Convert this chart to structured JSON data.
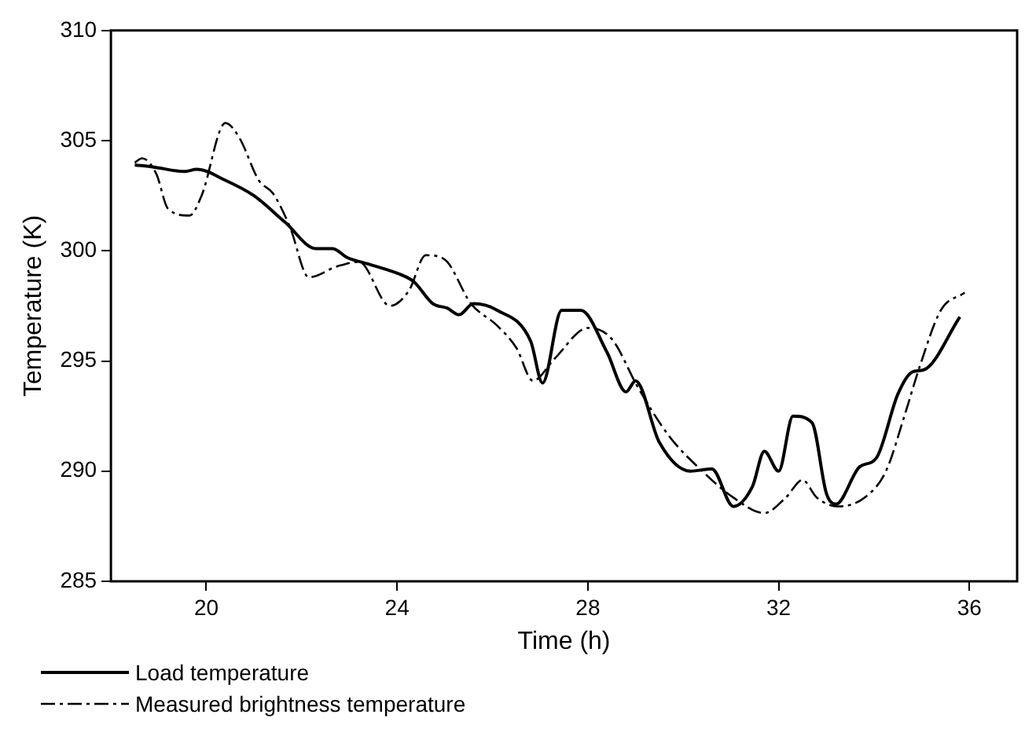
{
  "chart_data": {
    "type": "line",
    "xlabel": "Time (h)",
    "ylabel": "Temperature (K)",
    "xlim": [
      18,
      37
    ],
    "xticks": [
      20,
      24,
      28,
      32,
      36
    ],
    "ylim": [
      285,
      310
    ],
    "yticks": [
      285,
      290,
      295,
      300,
      305,
      310
    ],
    "grid": false,
    "legend": "bottom",
    "marker": "none",
    "series": [
      {
        "name": "Load temperature",
        "color": "#000000",
        "line_style": "solid",
        "x": [
          18.5,
          18.9,
          19.55,
          19.8,
          20.4,
          21.0,
          21.65,
          22.3,
          22.65,
          22.95,
          23.4,
          23.85,
          24.1,
          24.35,
          24.75,
          25.05,
          25.3,
          25.6,
          26.1,
          26.8,
          27.05,
          27.45,
          27.85,
          28.4,
          28.8,
          29.0,
          29.5,
          30.15,
          30.6,
          31.05,
          31.45,
          31.7,
          32.0,
          32.3,
          32.7,
          33.0,
          33.2,
          33.7,
          34.05,
          34.5,
          34.8,
          35.05,
          35.8
        ],
        "values": [
          303.9,
          303.8,
          303.6,
          303.7,
          303.2,
          302.5,
          301.3,
          300.1,
          300.1,
          299.7,
          299.4,
          299.1,
          298.9,
          298.6,
          297.6,
          297.4,
          297.1,
          297.6,
          297.3,
          295.9,
          294.0,
          297.3,
          297.3,
          295.4,
          293.6,
          294.1,
          291.3,
          290.0,
          290.1,
          288.4,
          289.3,
          290.9,
          290.0,
          292.5,
          292.2,
          289.0,
          288.5,
          290.2,
          290.6,
          293.5,
          294.5,
          294.6,
          297.0
        ]
      },
      {
        "name": "Measured brightness temperature",
        "color": "#000000",
        "line_style": "dashdot",
        "x": [
          18.5,
          18.65,
          18.95,
          19.2,
          19.65,
          19.9,
          20.4,
          20.7,
          21.1,
          21.4,
          21.75,
          22.15,
          22.75,
          23.2,
          23.85,
          24.25,
          24.6,
          25.0,
          25.55,
          26.1,
          26.5,
          26.85,
          27.3,
          28.0,
          28.5,
          29.05,
          29.7,
          30.4,
          31.05,
          31.7,
          32.15,
          32.5,
          32.8,
          33.25,
          33.8,
          34.25,
          34.65,
          34.95,
          35.4,
          35.9
        ],
        "values": [
          304.0,
          304.2,
          303.5,
          301.9,
          301.6,
          302.5,
          305.8,
          305.1,
          303.2,
          302.6,
          301.1,
          298.8,
          299.3,
          299.5,
          297.5,
          298.2,
          299.8,
          299.6,
          297.6,
          296.6,
          295.6,
          294.1,
          295.1,
          296.5,
          296.0,
          293.8,
          291.6,
          290.0,
          288.8,
          288.1,
          288.8,
          289.6,
          288.8,
          288.4,
          288.8,
          290.0,
          292.6,
          294.7,
          297.3,
          298.1
        ]
      }
    ]
  }
}
